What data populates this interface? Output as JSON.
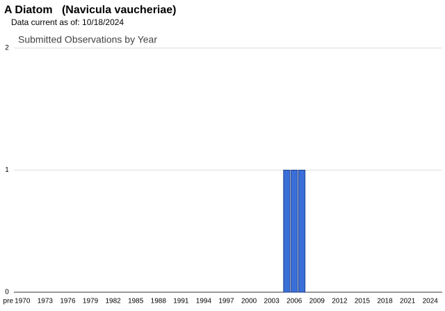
{
  "chart_data": {
    "type": "bar",
    "title": "A Diatom   (Navicula vaucheriae)",
    "subtitle": "Data current as of: 10/18/2024",
    "chart_title": "Submitted Observations by Year",
    "categories": [
      "pre",
      "1970",
      null,
      null,
      "1973",
      null,
      null,
      "1976",
      null,
      null,
      "1979",
      null,
      null,
      "1982",
      null,
      null,
      "1985",
      null,
      null,
      "1988",
      null,
      null,
      "1991",
      null,
      null,
      "1994",
      null,
      null,
      "1997",
      null,
      null,
      "2000",
      null,
      null,
      "2003",
      null,
      null,
      "2006",
      null,
      null,
      "2009",
      null,
      null,
      "2012",
      null,
      null,
      "2015",
      null,
      null,
      "2018",
      null,
      null,
      "2021",
      null,
      null,
      "2024"
    ],
    "values": [
      0,
      0,
      0,
      0,
      0,
      0,
      0,
      0,
      0,
      0,
      0,
      0,
      0,
      0,
      0,
      0,
      0,
      0,
      0,
      0,
      0,
      0,
      0,
      0,
      0,
      0,
      0,
      0,
      0,
      0,
      0,
      0,
      0,
      0,
      0,
      0,
      1,
      1,
      1,
      0,
      0,
      0,
      0,
      0,
      0,
      0,
      0,
      0,
      0,
      0,
      0,
      0,
      0,
      0,
      0,
      0
    ],
    "color": "#3a6fd8",
    "ylim": [
      0,
      2
    ],
    "yticks": [
      0,
      1,
      2
    ],
    "grid": true
  }
}
